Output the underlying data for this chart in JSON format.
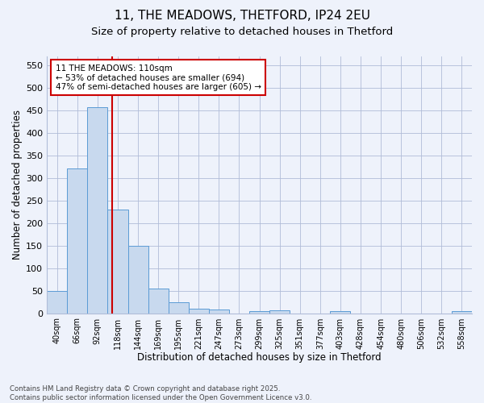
{
  "title1": "11, THE MEADOWS, THETFORD, IP24 2EU",
  "title2": "Size of property relative to detached houses in Thetford",
  "xlabel": "Distribution of detached houses by size in Thetford",
  "ylabel": "Number of detached properties",
  "bar_labels": [
    "40sqm",
    "66sqm",
    "92sqm",
    "118sqm",
    "144sqm",
    "169sqm",
    "195sqm",
    "221sqm",
    "247sqm",
    "273sqm",
    "299sqm",
    "325sqm",
    "351sqm",
    "377sqm",
    "403sqm",
    "428sqm",
    "454sqm",
    "480sqm",
    "506sqm",
    "532sqm",
    "558sqm"
  ],
  "bar_values": [
    50,
    322,
    457,
    230,
    150,
    55,
    25,
    10,
    8,
    0,
    5,
    6,
    0,
    0,
    4,
    0,
    0,
    0,
    0,
    0,
    4
  ],
  "bar_color": "#c8d9ee",
  "bar_edge_color": "#5b9bd5",
  "vline_x": 2.72,
  "vline_color": "#cc0000",
  "annotation_text": "11 THE MEADOWS: 110sqm\n← 53% of detached houses are smaller (694)\n47% of semi-detached houses are larger (605) →",
  "annotation_box_color": "#cc0000",
  "annotation_fontsize": 7.5,
  "ylim": [
    0,
    570
  ],
  "yticks": [
    0,
    50,
    100,
    150,
    200,
    250,
    300,
    350,
    400,
    450,
    500,
    550
  ],
  "bg_color": "#eef2fb",
  "plot_bg_color": "#eef2fb",
  "grid_color": "#b0bcd8",
  "footnote": "Contains HM Land Registry data © Crown copyright and database right 2025.\nContains public sector information licensed under the Open Government Licence v3.0.",
  "title1_fontsize": 11,
  "title2_fontsize": 9.5
}
